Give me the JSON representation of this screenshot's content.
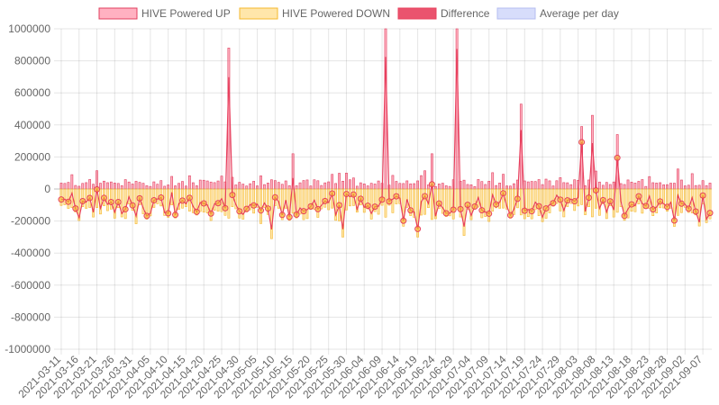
{
  "chart_data": {
    "type": "bar",
    "legend_position": "top",
    "grid": true,
    "ylim": [
      -1000000,
      1000000
    ],
    "y_ticks": [
      1000000,
      800000,
      600000,
      400000,
      200000,
      0,
      -200000,
      -400000,
      -600000,
      -800000,
      -1000000
    ],
    "y_tick_labels": [
      "1000000",
      "800000",
      "600000",
      "400000",
      "200000",
      "0",
      "-200000",
      "-400000",
      "-600000",
      "-800000",
      "-1000000"
    ],
    "x_start": "2021-03-11",
    "x_end": "2021-09-09",
    "x_tick_labels": [
      "2021-03-11",
      "2021-03-16",
      "2021-03-21",
      "2021-03-26",
      "2021-03-31",
      "2021-04-05",
      "2021-04-10",
      "2021-04-15",
      "2021-04-20",
      "2021-04-25",
      "2021-04-30",
      "2021-05-05",
      "2021-05-10",
      "2021-05-15",
      "2021-05-20",
      "2021-05-25",
      "2021-05-30",
      "2021-06-04",
      "2021-06-09",
      "2021-06-14",
      "2021-06-19",
      "2021-06-24",
      "2021-06-29",
      "2021-07-04",
      "2021-07-09",
      "2021-07-14",
      "2021-07-19",
      "2021-07-24",
      "2021-07-29",
      "2021-08-03",
      "2021-08-08",
      "2021-08-13",
      "2021-08-18",
      "2021-08-23",
      "2021-08-28",
      "2021-09-02",
      "2021-09-07"
    ],
    "series": [
      {
        "name": "HIVE Powered UP",
        "type": "bar",
        "color": "#e0405f",
        "fill": "rgba(255,99,132,0.5)"
      },
      {
        "name": "HIVE Powered DOWN",
        "type": "bar",
        "color": "#f5b82e",
        "fill": "rgba(255,206,86,0.5)"
      },
      {
        "name": "Difference",
        "type": "line",
        "color": "#e8405e",
        "fill": "rgba(232,64,94,0.9)"
      },
      {
        "name": "Average per day",
        "type": "line",
        "color": "#b4bdf0",
        "fill": "rgba(54,84,235,0.2)"
      }
    ],
    "spikes_up": [
      {
        "date": "2021-04-27",
        "value": 880000
      },
      {
        "date": "2021-06-10",
        "value": 1000000
      },
      {
        "date": "2021-06-30",
        "value": 1000000
      },
      {
        "date": "2021-07-18",
        "value": 530000
      },
      {
        "date": "2021-08-07",
        "value": 460000
      },
      {
        "date": "2021-08-14",
        "value": 340000
      },
      {
        "date": "2021-08-04",
        "value": 390000
      },
      {
        "date": "2021-05-15",
        "value": 220000
      },
      {
        "date": "2021-06-23",
        "value": 220000
      }
    ],
    "spikes_down": [
      {
        "date": "2021-05-09",
        "value": -310000
      },
      {
        "date": "2021-05-29",
        "value": -300000
      },
      {
        "date": "2021-06-19",
        "value": -300000
      },
      {
        "date": "2021-07-02",
        "value": -290000
      }
    ]
  }
}
